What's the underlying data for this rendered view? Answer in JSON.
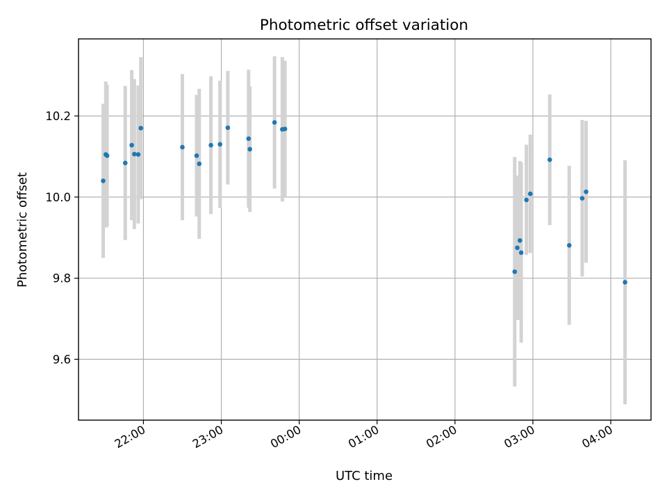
{
  "chart_data": {
    "type": "scatter",
    "title": "Photometric offset variation",
    "xlabel": "UTC time",
    "ylabel": "Photometric offset",
    "x_format": "HH:MM",
    "xlim": [
      "21:10",
      "04:31"
    ],
    "ylim": [
      9.45,
      10.39
    ],
    "x_ticks": [
      "22:00",
      "23:00",
      "00:00",
      "01:00",
      "02:00",
      "03:00",
      "04:00"
    ],
    "y_ticks": [
      9.6,
      9.8,
      10.0,
      10.2
    ],
    "grid": true,
    "colors": {
      "point": "#1f77b4",
      "errorbar": "#d3d3d3",
      "grid": "#b0b0b0"
    },
    "points": [
      {
        "x": "21:29",
        "y": 10.04,
        "yerr": 0.19
      },
      {
        "x": "21:31",
        "y": 10.105,
        "yerr": 0.18
      },
      {
        "x": "21:32",
        "y": 10.102,
        "yerr": 0.175
      },
      {
        "x": "21:46",
        "y": 10.084,
        "yerr": 0.19
      },
      {
        "x": "21:51",
        "y": 10.128,
        "yerr": 0.185
      },
      {
        "x": "21:53",
        "y": 10.106,
        "yerr": 0.185
      },
      {
        "x": "21:56",
        "y": 10.105,
        "yerr": 0.17
      },
      {
        "x": "21:58",
        "y": 10.17,
        "yerr": 0.175
      },
      {
        "x": "22:30",
        "y": 10.123,
        "yerr": 0.18
      },
      {
        "x": "22:41",
        "y": 10.102,
        "yerr": 0.15
      },
      {
        "x": "22:43",
        "y": 10.082,
        "yerr": 0.185
      },
      {
        "x": "22:52",
        "y": 10.128,
        "yerr": 0.17
      },
      {
        "x": "22:59",
        "y": 10.13,
        "yerr": 0.157
      },
      {
        "x": "23:05",
        "y": 10.171,
        "yerr": 0.14
      },
      {
        "x": "23:21",
        "y": 10.144,
        "yerr": 0.17
      },
      {
        "x": "23:22",
        "y": 10.118,
        "yerr": 0.155
      },
      {
        "x": "23:41",
        "y": 10.184,
        "yerr": 0.163
      },
      {
        "x": "23:47",
        "y": 10.167,
        "yerr": 0.178
      },
      {
        "x": "23:49",
        "y": 10.168,
        "yerr": 0.168
      },
      {
        "x": "02:46",
        "y": 9.816,
        "yerr": 0.283
      },
      {
        "x": "02:48",
        "y": 9.875,
        "yerr": 0.178
      },
      {
        "x": "02:50",
        "y": 9.893,
        "yerr": 0.196
      },
      {
        "x": "02:51",
        "y": 9.863,
        "yerr": 0.222
      },
      {
        "x": "02:55",
        "y": 9.993,
        "yerr": 0.136
      },
      {
        "x": "02:58",
        "y": 10.008,
        "yerr": 0.146
      },
      {
        "x": "03:13",
        "y": 10.092,
        "yerr": 0.161
      },
      {
        "x": "03:28",
        "y": 9.881,
        "yerr": 0.196
      },
      {
        "x": "03:38",
        "y": 9.997,
        "yerr": 0.193
      },
      {
        "x": "03:41",
        "y": 10.013,
        "yerr": 0.175
      },
      {
        "x": "04:11",
        "y": 9.79,
        "yerr": 0.301
      }
    ]
  }
}
